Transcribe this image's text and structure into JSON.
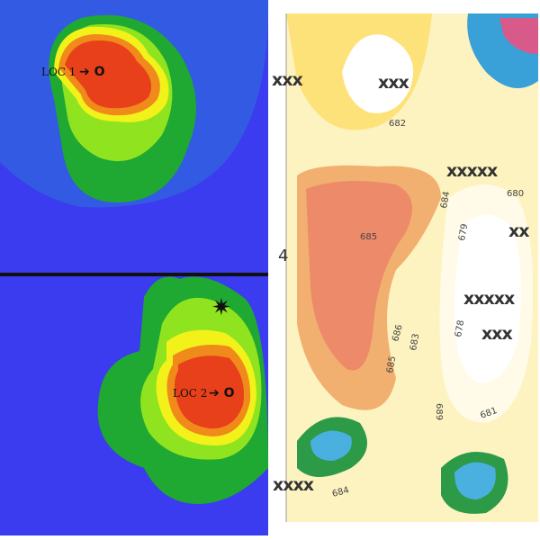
{
  "left_map": {
    "labels": [
      "LOC 1",
      "LOC 2"
    ]
  },
  "right_map": {
    "sheet_number": "4",
    "markers": [
      "xxx",
      "xxx",
      "xxxxx",
      "xx",
      "xxxxx",
      "xxx",
      "xxxx"
    ],
    "contour_labels": [
      "682",
      "684",
      "680",
      "685",
      "679",
      "678",
      "686",
      "683",
      "685",
      "681",
      "689",
      "684"
    ]
  }
}
